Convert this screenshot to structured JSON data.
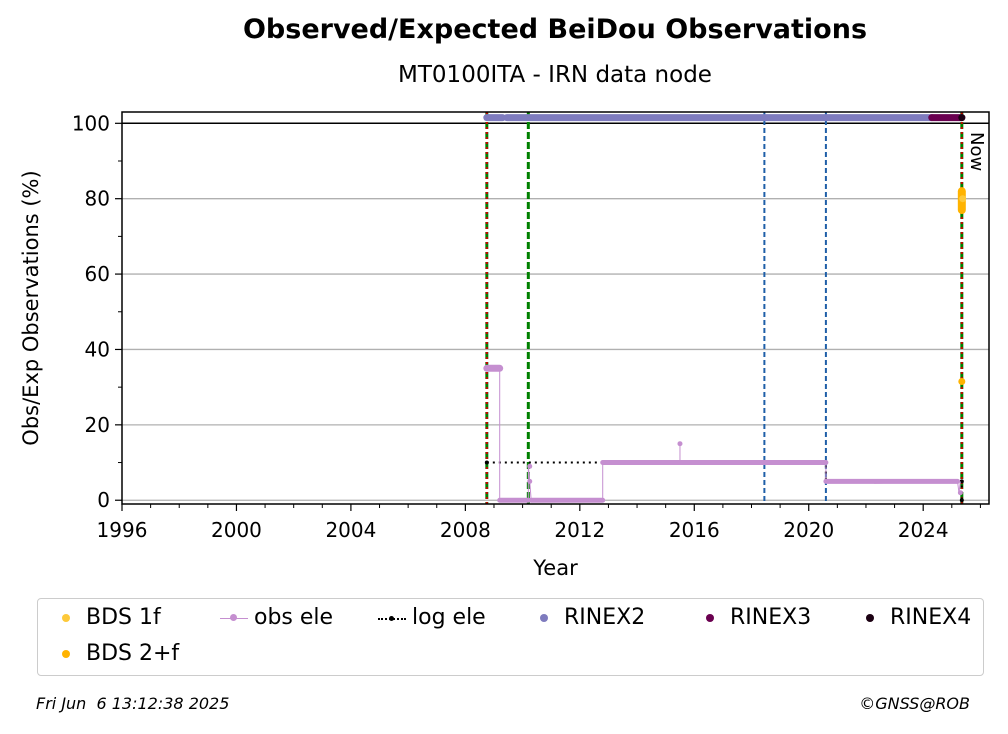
{
  "header": {
    "title": "Observed/Expected BeiDou Observations",
    "subtitle": "MT0100ITA - IRN data node"
  },
  "footer": {
    "timestamp": "Fri Jun  6 13:12:38 2025",
    "copyright": "©GNSS@ROB"
  },
  "colors": {
    "bds_1f": "#fdc93a",
    "bds_2f": "#ffb300",
    "obs_ele": "#c58fd0",
    "log_ele": "#000000",
    "rinex2": "#7e7bbe",
    "rinex3": "#6a0050",
    "rinex4": "#1b0012",
    "green_line": "#008000",
    "red_line": "#cc0000",
    "blue_line": "#1f5fa8"
  },
  "legend": [
    {
      "label": "BDS 1f",
      "color": "#fdc93a",
      "marker": "dot"
    },
    {
      "label": "obs ele",
      "color": "#c58fd0",
      "marker": "line-dot"
    },
    {
      "label": "log ele",
      "color": "#000000",
      "marker": "dotted-dot"
    },
    {
      "label": "RINEX2",
      "color": "#7e7bbe",
      "marker": "dot"
    },
    {
      "label": "RINEX3",
      "color": "#6a0050",
      "marker": "dot"
    },
    {
      "label": "RINEX4",
      "color": "#1b0012",
      "marker": "dot"
    },
    {
      "label": "BDS 2+f",
      "color": "#ffb300",
      "marker": "dot"
    }
  ],
  "chart_data": {
    "type": "line",
    "xlabel": "Year",
    "ylabel": "Obs/Exp Observations (%)",
    "xlim": [
      1996,
      2026.3
    ],
    "ylim": [
      -1,
      103
    ],
    "xticks": [
      1996,
      2000,
      2004,
      2008,
      2012,
      2016,
      2020,
      2024
    ],
    "yticks": [
      0,
      20,
      40,
      60,
      80,
      100
    ],
    "grid": "horizontal",
    "now_label": "Now",
    "vertical_lines": [
      {
        "x": 2008.75,
        "color": "green",
        "style": "dashed"
      },
      {
        "x": 2008.75,
        "color": "red",
        "style": "dotted"
      },
      {
        "x": 2010.2,
        "color": "green",
        "style": "dashed"
      },
      {
        "x": 2018.45,
        "color": "blue",
        "style": "dashed"
      },
      {
        "x": 2020.6,
        "color": "blue",
        "style": "dashed"
      },
      {
        "x": 2025.35,
        "color": "green",
        "style": "dashed"
      },
      {
        "x": 2025.35,
        "color": "red",
        "style": "dotted"
      }
    ],
    "series": [
      {
        "name": "obs ele",
        "x": [
          2008.75,
          2009.2,
          2009.2,
          2010.2,
          2010.2,
          2010.25,
          2010.3,
          2012.8,
          2012.8,
          2015.5,
          2015.5,
          2015.5,
          2020.6,
          2020.6,
          2022.3,
          2022.3,
          2025.2,
          2025.25,
          2025.3
        ],
        "y": [
          35,
          35,
          0,
          0,
          9,
          5,
          0,
          0,
          10,
          10,
          15,
          10,
          10,
          5,
          5,
          4.5,
          5,
          2,
          5
        ]
      },
      {
        "name": "log ele",
        "x": [
          2008.75,
          2020.6,
          2020.6,
          2025.35,
          2025.35
        ],
        "y": [
          10,
          10,
          5,
          5,
          0
        ]
      },
      {
        "name": "RINEX2",
        "x_range": [
          2008.75,
          2024.3
        ],
        "y": 101.5
      },
      {
        "name": "RINEX3",
        "x_range": [
          2024.3,
          2025.35
        ],
        "y": 101.5
      },
      {
        "name": "RINEX4",
        "x": [
          2025.35
        ],
        "y": [
          101.5
        ]
      },
      {
        "name": "BDS 1f",
        "x": [
          2025.35,
          2025.38
        ],
        "y": [
          78,
          82
        ]
      },
      {
        "name": "BDS 2+f",
        "x": [
          2025.35,
          2025.38,
          2025.35
        ],
        "y": [
          78,
          81,
          31.5
        ]
      }
    ]
  }
}
